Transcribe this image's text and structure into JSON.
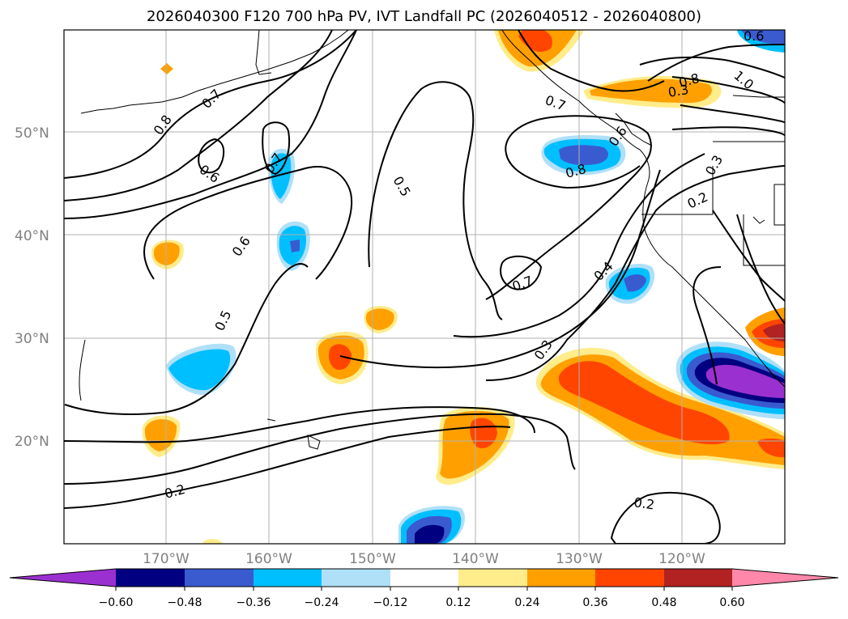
{
  "title": "2026040300 F120 700 hPa PV, IVT Landfall PC (2026040512 - 2026040800)",
  "map": {
    "lat_labels": [
      "50°N",
      "40°N",
      "30°N",
      "20°N"
    ],
    "lon_labels": [
      "170°W",
      "160°W",
      "150°W",
      "140°W",
      "130°W",
      "120°W"
    ]
  },
  "contour_labels": [
    "0.8",
    "0.7",
    "0.6",
    "0.6",
    "0.5",
    "0.7",
    "0.5",
    "0.8",
    "0.7",
    "0.4",
    "0.3",
    "0.2",
    "0.3",
    "0.2",
    "0.6",
    "0.8",
    "0.7",
    "1.0",
    "0.3",
    "0.2",
    "0.6"
  ],
  "colorbar": {
    "ticks": [
      "−0.60",
      "−0.48",
      "−0.36",
      "−0.24",
      "−0.12",
      "0.12",
      "0.24",
      "0.36",
      "0.48",
      "0.60"
    ],
    "colors": {
      "neg_extend": "#9b30d0",
      "neg_060": "#000080",
      "neg_048": "#3a5bcf",
      "neg_036": "#00bfff",
      "neg_024": "#b0e0f8",
      "zero": "#ffffff",
      "pos_012": "#ffec8b",
      "pos_024": "#ffa000",
      "pos_036": "#ff4500",
      "pos_048": "#b22222",
      "pos_extend": "#ff88aa"
    }
  }
}
